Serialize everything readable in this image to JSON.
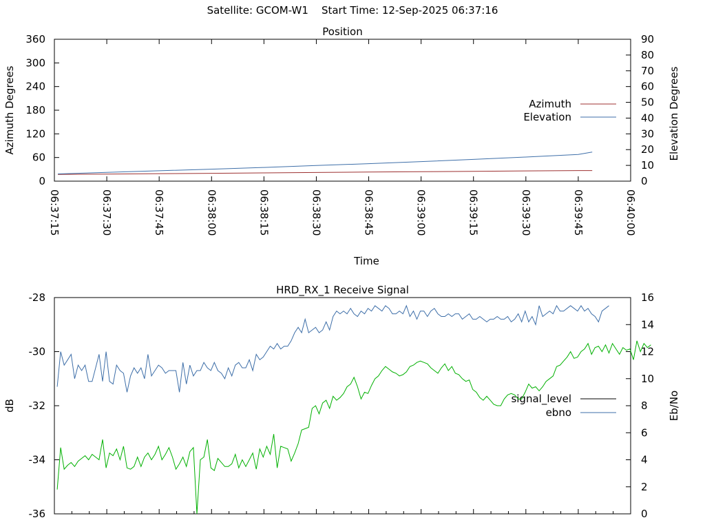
{
  "page_title": "Satellite: GCOM-W1    Start Time: 12-Sep-2025 06:37:16",
  "chart_data": [
    {
      "type": "line",
      "title": "Position",
      "xlabel": "Time",
      "ylabel": "Azimuth Degrees",
      "y2label": "Elevation Degrees",
      "x_ticks": [
        "06:37:15",
        "06:37:30",
        "06:37:45",
        "06:38:00",
        "06:38:15",
        "06:38:30",
        "06:38:45",
        "06:39:00",
        "06:39:15",
        "06:39:30",
        "06:39:45",
        "06:40:00"
      ],
      "xlim": [
        "06:37:15",
        "06:40:00"
      ],
      "ylim": [
        0,
        360
      ],
      "y_ticks": [
        0,
        60,
        120,
        180,
        240,
        300,
        360
      ],
      "y2lim": [
        0,
        90
      ],
      "y2_ticks": [
        0,
        10,
        20,
        30,
        40,
        50,
        60,
        70,
        80,
        90
      ],
      "legend_position": "right",
      "grid": false,
      "series": [
        {
          "name": "Azimuth",
          "axis": "left",
          "color": "#9c2f2f",
          "x": [
            "06:37:16",
            "06:37:30",
            "06:37:45",
            "06:38:00",
            "06:38:15",
            "06:38:30",
            "06:38:45",
            "06:39:00",
            "06:39:15",
            "06:39:30",
            "06:39:45",
            "06:39:49"
          ],
          "y": [
            17,
            18,
            19,
            20,
            21,
            22,
            23,
            24,
            25,
            26,
            27,
            27
          ]
        },
        {
          "name": "Elevation",
          "axis": "right",
          "color": "#3d6ea8",
          "x": [
            "06:37:16",
            "06:37:30",
            "06:37:45",
            "06:38:00",
            "06:38:15",
            "06:38:30",
            "06:38:45",
            "06:39:00",
            "06:39:15",
            "06:39:30",
            "06:39:45",
            "06:39:49"
          ],
          "y": [
            4.6,
            5.6,
            6.6,
            7.6,
            8.7,
            9.9,
            11.1,
            12.4,
            13.8,
            15.3,
            16.9,
            18.5
          ]
        }
      ]
    },
    {
      "type": "line",
      "title": "HRD_RX_1 Receive Signal",
      "xlabel": "",
      "ylabel": "dB",
      "y2label": "Eb/No",
      "xlim": [
        "06:37:15",
        "06:40:00"
      ],
      "ylim": [
        -36,
        -28
      ],
      "y_ticks": [
        -36,
        -34,
        -32,
        -30,
        -28
      ],
      "y2lim": [
        0,
        16
      ],
      "y2_ticks": [
        0,
        2,
        4,
        6,
        8,
        10,
        12,
        14,
        16
      ],
      "legend_position": "right",
      "grid": false,
      "x_start_seconds_from_06_37_15": 0.8,
      "sample_interval_seconds": 1,
      "series": [
        {
          "name": "signal_level",
          "axis": "left",
          "color": "#000000",
          "y": []
        },
        {
          "name": "ebno",
          "axis": "right",
          "color": "#3d6ea8",
          "y": [
            9.4,
            12.0,
            11.0,
            11.4,
            11.8,
            10.0,
            11.0,
            10.6,
            11.0,
            9.8,
            9.8,
            10.8,
            11.8,
            9.8,
            12.0,
            9.8,
            9.6,
            11.0,
            10.6,
            10.4,
            9.0,
            10.2,
            10.8,
            10.4,
            10.8,
            10.0,
            11.8,
            10.2,
            10.6,
            11.0,
            10.8,
            10.4,
            10.6,
            10.6,
            10.6,
            9.0,
            11.2,
            9.6,
            11.0,
            10.2,
            10.6,
            10.6,
            11.2,
            10.8,
            10.6,
            11.2,
            10.6,
            10.4,
            10.0,
            10.8,
            10.2,
            11.0,
            11.2,
            10.8,
            10.8,
            11.4,
            10.6,
            11.8,
            11.4,
            11.6,
            12.0,
            12.4,
            12.2,
            12.6,
            12.2,
            12.4,
            12.4,
            12.8,
            13.4,
            13.8,
            13.4,
            14.4,
            13.4,
            13.6,
            13.8,
            13.4,
            13.6,
            14.2,
            13.6,
            14.6,
            15.0,
            14.8,
            15.0,
            14.8,
            15.2,
            14.8,
            14.6,
            15.0,
            14.8,
            15.2,
            15.0,
            15.4,
            15.2,
            15.0,
            15.4,
            15.2,
            14.8,
            14.8,
            15.0,
            14.8,
            15.4,
            14.6,
            15.0,
            14.4,
            15.0,
            15.0,
            14.6,
            15.0,
            15.2,
            14.8,
            14.6,
            14.6,
            14.8,
            14.6,
            14.8,
            14.8,
            14.4,
            14.6,
            14.8,
            14.4,
            14.4,
            14.6,
            14.4,
            14.2,
            14.4,
            14.4,
            14.6,
            14.4,
            14.4,
            14.6,
            14.2,
            14.4,
            14.8,
            14.2,
            15.0,
            14.2,
            14.6,
            14.0,
            15.4,
            14.6,
            14.8,
            15.0,
            14.8,
            15.4,
            15.0,
            15.0,
            15.2,
            15.4,
            15.2,
            15.0,
            15.4,
            15.0,
            15.2,
            14.8,
            14.6,
            14.2,
            15.0,
            15.2,
            15.4
          ]
        },
        {
          "name": "",
          "axis": "right",
          "color": "#00b000",
          "y": [
            1.8,
            4.9,
            3.3,
            3.6,
            3.8,
            3.5,
            3.9,
            4.1,
            4.3,
            4.0,
            4.4,
            4.2,
            4.0,
            5.5,
            3.4,
            4.5,
            4.3,
            4.8,
            4.0,
            5.0,
            3.4,
            3.3,
            3.5,
            4.2,
            3.5,
            4.2,
            4.5,
            4.0,
            4.4,
            5.0,
            4.0,
            4.4,
            4.9,
            4.2,
            3.3,
            3.7,
            4.2,
            3.5,
            4.6,
            4.9,
            0.0,
            4.0,
            4.2,
            5.5,
            3.4,
            3.2,
            4.1,
            3.8,
            3.5,
            3.5,
            3.7,
            4.4,
            3.4,
            4.0,
            3.5,
            4.0,
            4.5,
            3.3,
            4.8,
            4.2,
            5.0,
            4.4,
            5.9,
            3.4,
            5.0,
            4.9,
            4.8,
            3.9,
            4.5,
            5.2,
            6.2,
            6.3,
            6.4,
            7.8,
            8.0,
            7.4,
            8.2,
            8.4,
            7.8,
            8.7,
            8.4,
            8.6,
            8.9,
            9.4,
            9.6,
            10.1,
            9.4,
            8.5,
            9.0,
            8.9,
            9.5,
            10.0,
            10.2,
            10.6,
            10.9,
            10.7,
            10.5,
            10.4,
            10.2,
            10.3,
            10.5,
            10.9,
            11.0,
            11.2,
            11.3,
            11.2,
            11.1,
            10.8,
            10.6,
            10.4,
            10.8,
            11.1,
            10.6,
            10.9,
            10.4,
            10.3,
            10.0,
            9.8,
            9.9,
            9.2,
            9.0,
            8.6,
            8.4,
            8.7,
            8.4,
            8.1,
            8.0,
            8.0,
            8.5,
            8.8,
            8.9,
            8.8,
            8.5,
            8.5,
            9.0,
            9.6,
            9.3,
            9.4,
            9.1,
            9.4,
            9.8,
            10.0,
            10.2,
            10.9,
            11.0,
            11.3,
            11.6,
            12.0,
            11.5,
            11.6,
            12.0,
            12.2,
            12.6,
            11.8,
            12.3,
            12.4,
            12.0,
            12.5,
            11.9,
            12.6,
            12.2,
            11.8,
            12.3,
            12.1,
            12.2,
            11.4,
            12.8,
            12.0,
            12.6,
            12.3,
            12.5
          ]
        }
      ]
    }
  ]
}
